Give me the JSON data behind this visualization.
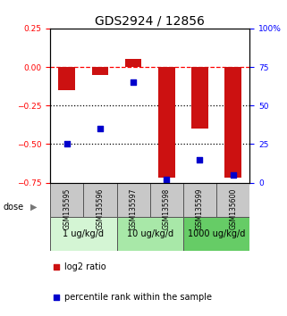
{
  "title": "GDS2924 / 12856",
  "samples": [
    "GSM135595",
    "GSM135596",
    "GSM135597",
    "GSM135598",
    "GSM135599",
    "GSM135600"
  ],
  "log2_ratio": [
    -0.15,
    -0.05,
    0.05,
    -0.72,
    -0.4,
    -0.72
  ],
  "percentile_rank": [
    25,
    35,
    65,
    2,
    15,
    5
  ],
  "ylim_left": [
    -0.75,
    0.25
  ],
  "ylim_right": [
    0,
    100
  ],
  "yticks_left": [
    0.25,
    0,
    -0.25,
    -0.5,
    -0.75
  ],
  "yticks_right": [
    100,
    75,
    50,
    25,
    0
  ],
  "hlines": [
    0,
    -0.25,
    -0.5
  ],
  "hline_styles": [
    "dashed",
    "dotted",
    "dotted"
  ],
  "hline_colors": [
    "red",
    "black",
    "black"
  ],
  "bar_color": "#cc1111",
  "dot_color": "#0000cc",
  "sample_box_color": "#c8c8c8",
  "dose_groups": [
    {
      "label": "1 ug/kg/d",
      "samples": [
        0,
        1
      ],
      "color": "#d4f5d4"
    },
    {
      "label": "10 ug/kg/d",
      "samples": [
        2,
        3
      ],
      "color": "#a8e8a8"
    },
    {
      "label": "1000 ug/kg/d",
      "samples": [
        4,
        5
      ],
      "color": "#66cc66"
    }
  ],
  "dose_label": "dose",
  "legend_bar_label": "log2 ratio",
  "legend_dot_label": "percentile rank within the sample",
  "title_fontsize": 10,
  "tick_fontsize": 6.5,
  "sample_fontsize": 5.5,
  "dose_fontsize": 7,
  "legend_fontsize": 7
}
